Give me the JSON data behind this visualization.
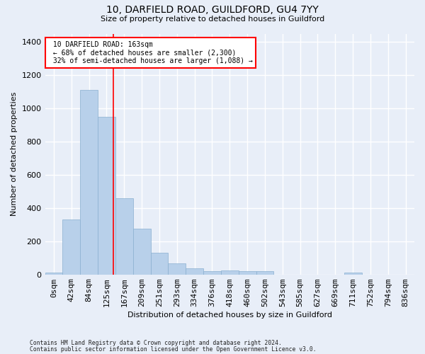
{
  "title1": "10, DARFIELD ROAD, GUILDFORD, GU4 7YY",
  "title2": "Size of property relative to detached houses in Guildford",
  "xlabel": "Distribution of detached houses by size in Guildford",
  "ylabel": "Number of detached properties",
  "bin_labels": [
    "0sqm",
    "42sqm",
    "84sqm",
    "125sqm",
    "167sqm",
    "209sqm",
    "251sqm",
    "293sqm",
    "334sqm",
    "376sqm",
    "418sqm",
    "460sqm",
    "502sqm",
    "543sqm",
    "585sqm",
    "627sqm",
    "669sqm",
    "711sqm",
    "752sqm",
    "794sqm",
    "836sqm"
  ],
  "bar_heights": [
    10,
    330,
    1110,
    950,
    460,
    275,
    130,
    68,
    38,
    22,
    25,
    22,
    18,
    0,
    0,
    0,
    0,
    12,
    0,
    0,
    0
  ],
  "bar_color": "#b8d0ea",
  "bar_edge_color": "#8ab0d0",
  "annotation_text1": "10 DARFIELD ROAD: 163sqm",
  "annotation_text2": "← 68% of detached houses are smaller (2,300)",
  "annotation_text3": "32% of semi-detached houses are larger (1,088) →",
  "ylim": [
    0,
    1450
  ],
  "footnote1": "Contains HM Land Registry data © Crown copyright and database right 2024.",
  "footnote2": "Contains public sector information licensed under the Open Government Licence v3.0.",
  "bg_color": "#e8eef8",
  "plot_bg_color": "#e8eef8"
}
